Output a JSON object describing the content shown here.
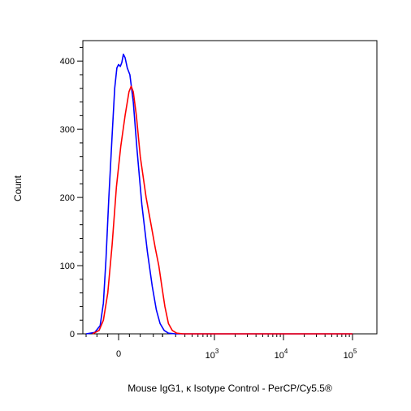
{
  "chart_data": {
    "type": "line",
    "title": "",
    "xlabel": "Mouse IgG1, κ Isotype Control - PerCP/Cy5.5®",
    "ylabel": "Count",
    "x_scale": "biexponential",
    "y_ticks": [
      "0",
      "100",
      "200",
      "300",
      "400"
    ],
    "ylim": [
      0,
      430
    ],
    "x_ticks": [
      {
        "value": 0,
        "label": "0"
      },
      {
        "value": 1000,
        "base": "10",
        "exp": "3"
      },
      {
        "value": 10000,
        "base": "10",
        "exp": "4"
      },
      {
        "value": 100000,
        "base": "10",
        "exp": "5"
      }
    ],
    "grid": false,
    "series": [
      {
        "color": "#0000ff",
        "points": [
          [
            -150,
            0
          ],
          [
            -110,
            2
          ],
          [
            -85,
            12
          ],
          [
            -70,
            45
          ],
          [
            -58,
            110
          ],
          [
            -45,
            200
          ],
          [
            -30,
            290
          ],
          [
            -18,
            360
          ],
          [
            -8,
            390
          ],
          [
            0,
            395
          ],
          [
            8,
            392
          ],
          [
            15,
            398
          ],
          [
            22,
            410
          ],
          [
            30,
            405
          ],
          [
            40,
            390
          ],
          [
            52,
            380
          ],
          [
            68,
            340
          ],
          [
            85,
            270
          ],
          [
            105,
            190
          ],
          [
            125,
            120
          ],
          [
            145,
            70
          ],
          [
            165,
            35
          ],
          [
            185,
            15
          ],
          [
            210,
            5
          ],
          [
            240,
            1
          ],
          [
            300,
            0
          ],
          [
            100000,
            0
          ]
        ]
      },
      {
        "color": "#ff0000",
        "points": [
          [
            -120,
            0
          ],
          [
            -90,
            5
          ],
          [
            -70,
            20
          ],
          [
            -50,
            60
          ],
          [
            -30,
            130
          ],
          [
            -10,
            215
          ],
          [
            10,
            275
          ],
          [
            30,
            320
          ],
          [
            48,
            355
          ],
          [
            58,
            363
          ],
          [
            68,
            355
          ],
          [
            82,
            320
          ],
          [
            100,
            260
          ],
          [
            120,
            200
          ],
          [
            140,
            160
          ],
          [
            160,
            125
          ],
          [
            178,
            100
          ],
          [
            195,
            70
          ],
          [
            215,
            40
          ],
          [
            240,
            15
          ],
          [
            270,
            5
          ],
          [
            310,
            1
          ],
          [
            380,
            0
          ],
          [
            100000,
            0
          ]
        ]
      }
    ]
  }
}
